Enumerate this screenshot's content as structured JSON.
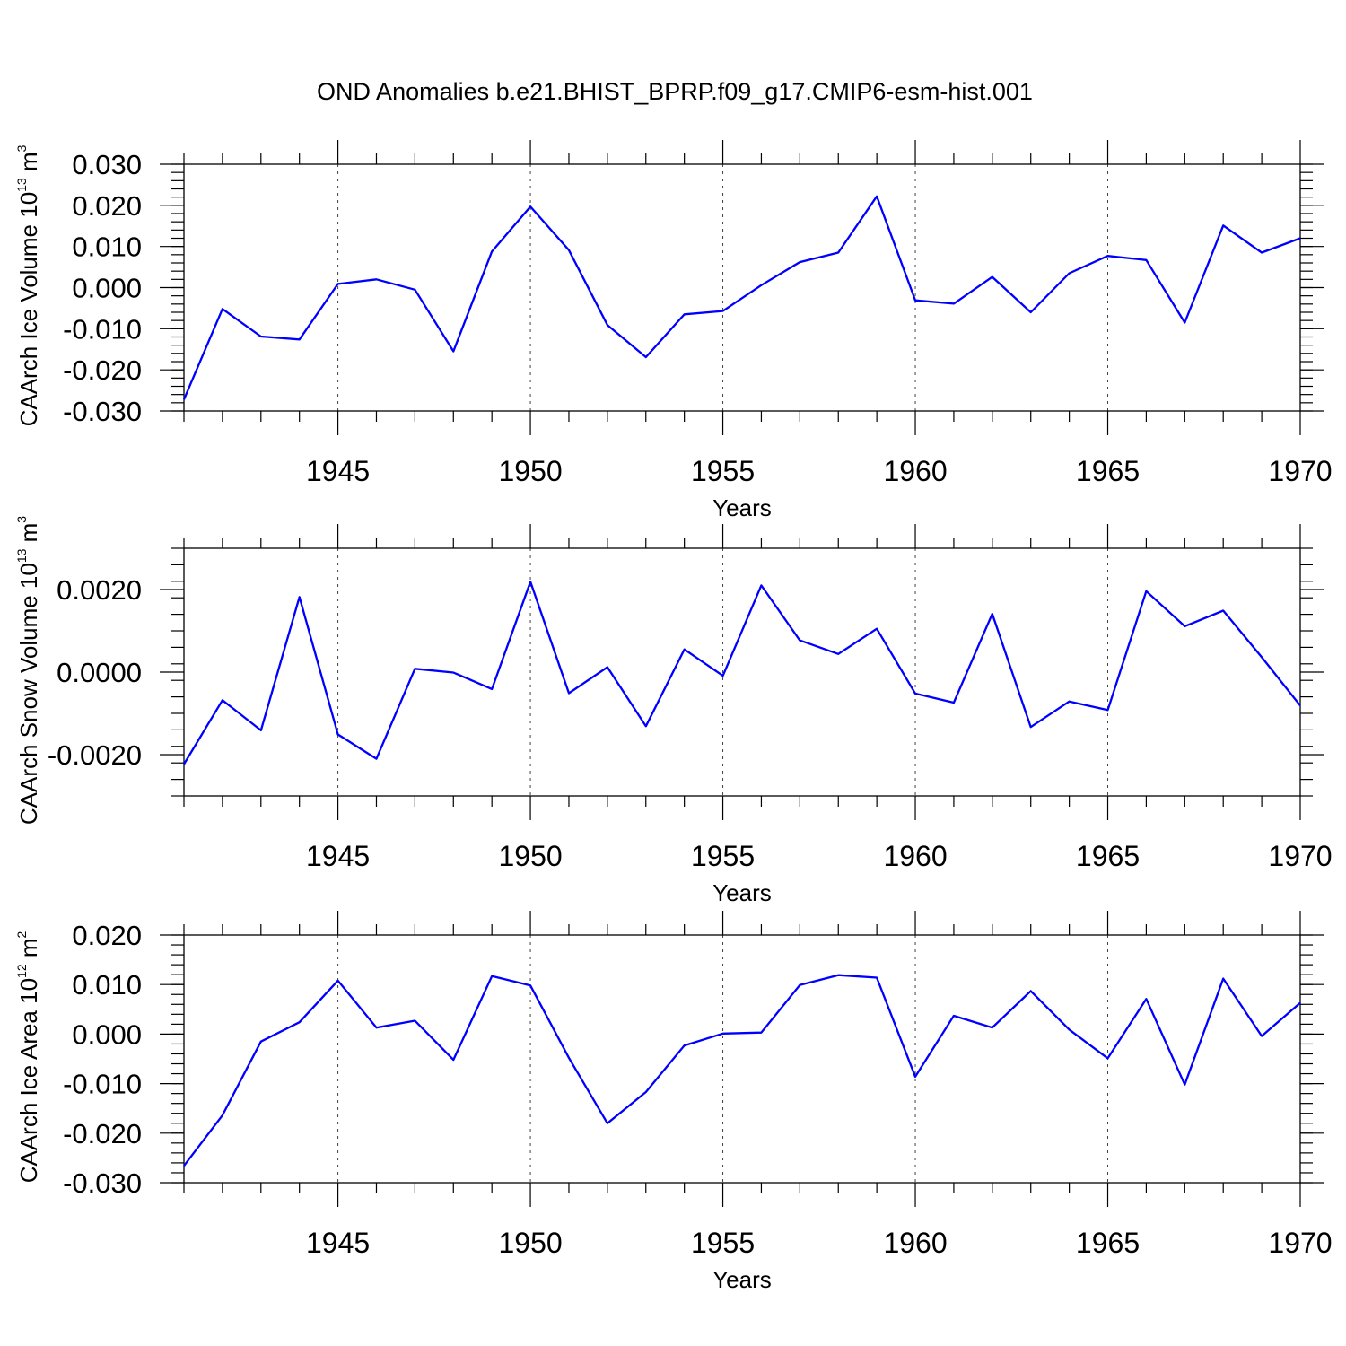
{
  "figure_title": "OND Anomalies b.e21.BHIST_BPRP.f09_g17.CMIP6-esm-hist.001",
  "chart_data": [
    {
      "type": "line",
      "ylabel": "CAArch Ice Volume 10",
      "ylabel_exp": "13",
      "ylabel_unit": " m",
      "ylabel_unit_exp": "3",
      "xlabel": "Years",
      "xlim": [
        1941,
        1970
      ],
      "ylim": [
        -0.03,
        0.03
      ],
      "yticks": [
        -0.03,
        -0.02,
        -0.01,
        0.0,
        0.01,
        0.02,
        0.03
      ],
      "ytick_labels": [
        "-0.030",
        "-0.020",
        "-0.010",
        "0.000",
        "0.010",
        "0.020",
        "0.030"
      ],
      "xticks": [
        1945,
        1950,
        1955,
        1960,
        1965,
        1970
      ],
      "xtick_labels": [
        "1945",
        "1950",
        "1955",
        "1960",
        "1965",
        "1970"
      ],
      "grid": "vertical dashed at major x ticks",
      "series": [
        {
          "name": "CAArch Ice Volume",
          "color": "#0000ff",
          "x": [
            1941,
            1942,
            1943,
            1944,
            1945,
            1946,
            1947,
            1948,
            1949,
            1950,
            1951,
            1952,
            1953,
            1954,
            1955,
            1956,
            1957,
            1958,
            1959,
            1960,
            1961,
            1962,
            1963,
            1964,
            1965,
            1966,
            1967,
            1968,
            1969,
            1970
          ],
          "values": [
            -0.0272,
            -0.0052,
            -0.0119,
            -0.0126,
            0.0009,
            0.002,
            -0.0005,
            -0.0155,
            0.0088,
            0.0197,
            0.0091,
            -0.0091,
            -0.0169,
            -0.0065,
            -0.0057,
            0.0006,
            0.0062,
            0.0085,
            0.0222,
            -0.0031,
            -0.0039,
            0.0026,
            -0.006,
            0.0035,
            0.0077,
            0.0067,
            -0.0085,
            0.0151,
            0.0085,
            0.012
          ]
        }
      ]
    },
    {
      "type": "line",
      "ylabel": "CAArch Snow Volume 10",
      "ylabel_exp": "13",
      "ylabel_unit": " m",
      "ylabel_unit_exp": "3",
      "xlabel": "Years",
      "xlim": [
        1941,
        1970
      ],
      "ylim": [
        -0.003,
        0.003
      ],
      "yticks": [
        -0.002,
        0.0,
        0.002
      ],
      "ytick_labels": [
        "-0.0020",
        "0.0000",
        "0.0020"
      ],
      "xticks": [
        1945,
        1950,
        1955,
        1960,
        1965,
        1970
      ],
      "xtick_labels": [
        "1945",
        "1950",
        "1955",
        "1960",
        "1965",
        "1970"
      ],
      "grid": "vertical dashed at major x ticks",
      "series": [
        {
          "name": "CAArch Snow Volume",
          "color": "#0000ff",
          "x": [
            1941,
            1942,
            1943,
            1944,
            1945,
            1946,
            1947,
            1948,
            1949,
            1950,
            1951,
            1952,
            1953,
            1954,
            1955,
            1956,
            1957,
            1958,
            1959,
            1960,
            1961,
            1962,
            1963,
            1964,
            1965,
            1966,
            1967,
            1968,
            1969,
            1970
          ],
          "values": [
            -0.00223,
            -0.00068,
            -0.00141,
            0.00182,
            -0.00151,
            -0.0021,
            8e-05,
            -1e-05,
            -0.00041,
            0.00219,
            -0.00051,
            0.00012,
            -0.00131,
            0.00055,
            -9e-05,
            0.0021,
            0.00077,
            0.00044,
            0.00105,
            -0.00052,
            -0.00074,
            0.00141,
            -0.00133,
            -0.00071,
            -0.00092,
            0.00196,
            0.00111,
            0.00149,
            0.00036,
            -0.00081
          ]
        }
      ]
    },
    {
      "type": "line",
      "ylabel": "CAArch Ice Area 10",
      "ylabel_exp": "12",
      "ylabel_unit": " m",
      "ylabel_unit_exp": "2",
      "xlabel": "Years",
      "xlim": [
        1941,
        1970
      ],
      "ylim": [
        -0.03,
        0.02
      ],
      "yticks": [
        -0.03,
        -0.02,
        -0.01,
        0.0,
        0.01,
        0.02
      ],
      "ytick_labels": [
        "-0.030",
        "-0.020",
        "-0.010",
        "0.000",
        "0.010",
        "0.020"
      ],
      "xticks": [
        1945,
        1950,
        1955,
        1960,
        1965,
        1970
      ],
      "xtick_labels": [
        "1945",
        "1950",
        "1955",
        "1960",
        "1965",
        "1970"
      ],
      "grid": "vertical dashed at major x ticks",
      "series": [
        {
          "name": "CAArch Ice Area",
          "color": "#0000ff",
          "x": [
            1941,
            1942,
            1943,
            1944,
            1945,
            1946,
            1947,
            1948,
            1949,
            1950,
            1951,
            1952,
            1953,
            1954,
            1955,
            1956,
            1957,
            1958,
            1959,
            1960,
            1961,
            1962,
            1963,
            1964,
            1965,
            1966,
            1967,
            1968,
            1969,
            1970
          ],
          "values": [
            -0.0266,
            -0.0164,
            -0.0015,
            0.0024,
            0.0108,
            0.0013,
            0.0027,
            -0.0052,
            0.0117,
            0.0098,
            -0.0048,
            -0.018,
            -0.0117,
            -0.0023,
            0.0001,
            0.0003,
            0.0099,
            0.0119,
            0.0114,
            -0.0086,
            0.0037,
            0.0013,
            0.0087,
            0.0009,
            -0.0049,
            0.0071,
            -0.0102,
            0.0112,
            -0.0004,
            0.0063
          ]
        }
      ]
    }
  ]
}
